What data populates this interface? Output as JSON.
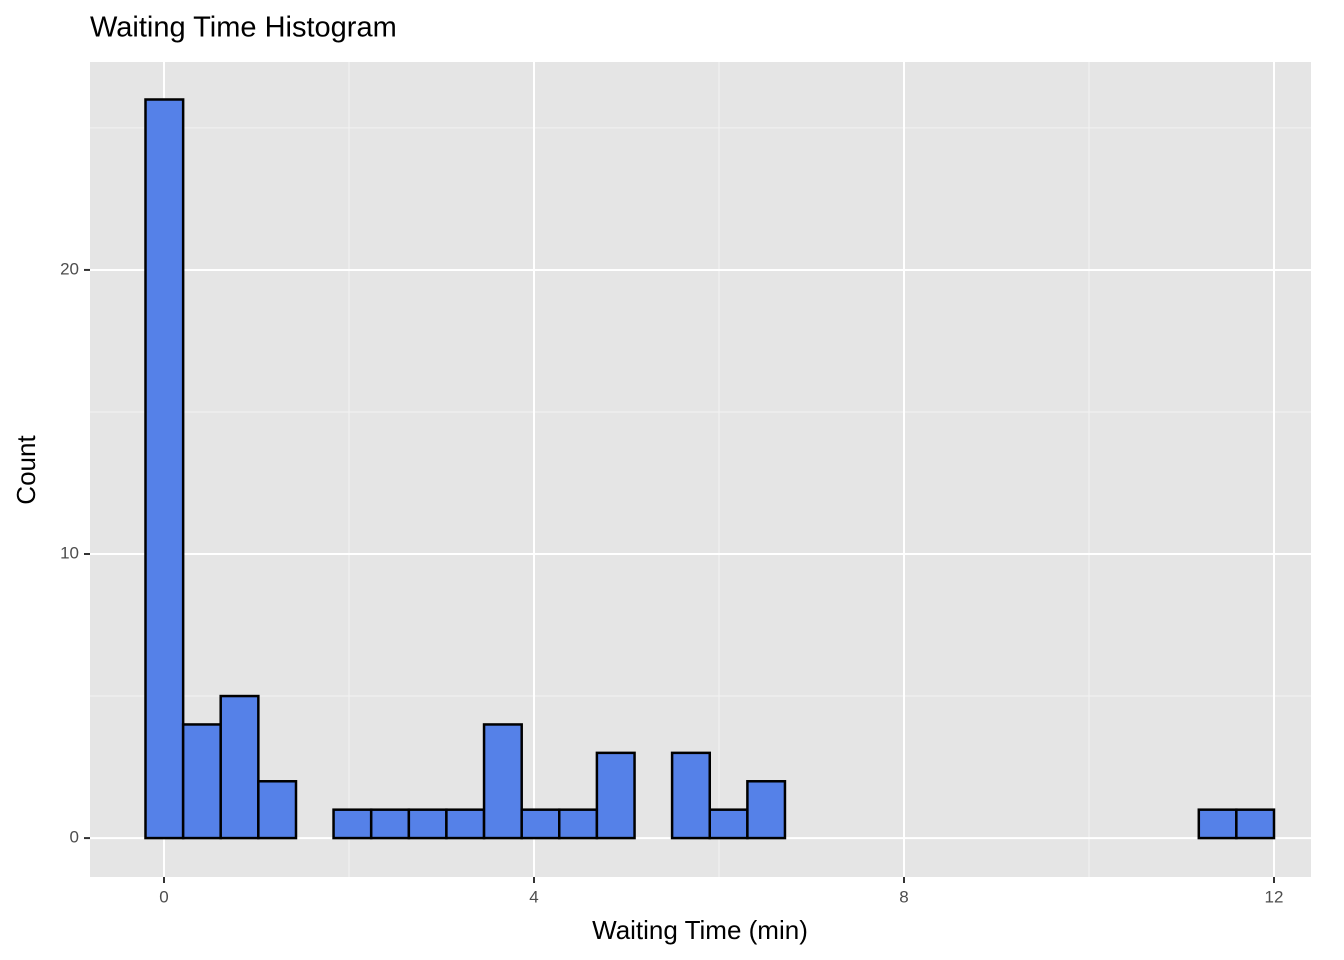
{
  "chart_data": {
    "type": "histogram",
    "title": "Waiting Time Histogram",
    "x_label": "Waiting Time (min)",
    "y_label": "Count",
    "bins": [
      -0.2,
      0.207,
      0.613,
      1.02,
      1.427,
      1.833,
      2.24,
      2.647,
      3.053,
      3.46,
      3.867,
      4.273,
      4.68,
      5.087,
      5.493,
      5.9,
      6.307,
      6.713,
      7.12,
      7.527,
      7.933,
      8.34,
      8.747,
      9.153,
      9.56,
      9.967,
      10.373,
      10.78,
      11.187,
      11.593,
      12.0
    ],
    "values": [
      26,
      4,
      5,
      2,
      0,
      1,
      1,
      1,
      1,
      4,
      1,
      1,
      3,
      0,
      3,
      1,
      2,
      0,
      0,
      0,
      0,
      0,
      0,
      0,
      0,
      0,
      0,
      0,
      1,
      1
    ],
    "color": "#5581e8",
    "xlim": [
      -0.8,
      12.4
    ],
    "ylim": [
      -1.37,
      27.32
    ],
    "xticks": [
      0,
      4,
      8,
      12
    ],
    "yticks": [
      0,
      10,
      20
    ],
    "minor_xticks": [
      2,
      6,
      10
    ],
    "minor_yticks": [
      5,
      15,
      25
    ],
    "grid": true
  }
}
